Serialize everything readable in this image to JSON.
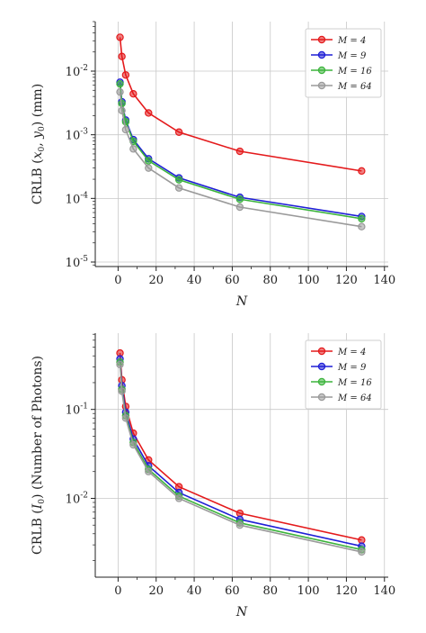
{
  "chart_data": [
    {
      "type": "line",
      "yscale": "log",
      "xlabel": "N",
      "ylabel": "CRLB (x0, y0) (mm)",
      "xlim": [
        -12,
        142
      ],
      "ylim": [
        8.5e-06,
        0.06
      ],
      "xticks": [
        "0",
        "20",
        "40",
        "60",
        "80",
        "100",
        "120",
        "140"
      ],
      "yticks": [
        "10^-2",
        "10^-3",
        "10^-4"
      ],
      "grid": true,
      "legend_position": "top-right",
      "x": [
        1,
        2,
        4,
        8,
        16,
        32,
        64,
        128
      ],
      "series": [
        {
          "name": "M = 4",
          "color": "#e41a1c",
          "values": [
            0.034,
            0.017,
            0.0087,
            0.0044,
            0.0022,
            0.0011,
            0.00055,
            0.00027
          ]
        },
        {
          "name": "M = 9",
          "color": "#1f1fd6",
          "values": [
            0.0067,
            0.0033,
            0.0017,
            0.00084,
            0.00042,
            0.00021,
            0.000104,
            5.2e-05
          ]
        },
        {
          "name": "M = 16",
          "color": "#3cb43c",
          "values": [
            0.0063,
            0.0031,
            0.0016,
            0.00079,
            0.00039,
            0.000196,
            9.7e-05,
            4.8e-05
          ]
        },
        {
          "name": "M = 64",
          "color": "#9a9a9a",
          "values": [
            0.0047,
            0.0024,
            0.0012,
            0.0006,
            0.0003,
            0.000146,
            7.3e-05,
            3.6e-05
          ]
        }
      ]
    },
    {
      "type": "line",
      "yscale": "log",
      "xlabel": "N",
      "ylabel": "CRLB (I0) (Number of Photons)",
      "xlim": [
        -12,
        142
      ],
      "ylim": [
        0.0013,
        0.72
      ],
      "xticks": [
        "0",
        "20",
        "40",
        "60",
        "80",
        "100",
        "120",
        "140"
      ],
      "yticks": [
        "10^-1",
        "10^-2"
      ],
      "grid": true,
      "legend_position": "top-right",
      "x": [
        1,
        2,
        4,
        8,
        16,
        32,
        64,
        128
      ],
      "series": [
        {
          "name": "M = 4",
          "color": "#e41a1c",
          "values": [
            0.43,
            0.215,
            0.108,
            0.054,
            0.027,
            0.0135,
            0.0068,
            0.0034
          ]
        },
        {
          "name": "M = 9",
          "color": "#1f1fd6",
          "values": [
            0.37,
            0.185,
            0.093,
            0.0465,
            0.0232,
            0.0116,
            0.0058,
            0.0029
          ]
        },
        {
          "name": "M = 16",
          "color": "#3cb43c",
          "values": [
            0.34,
            0.168,
            0.085,
            0.0425,
            0.0212,
            0.0106,
            0.0053,
            0.00265
          ]
        },
        {
          "name": "M = 64",
          "color": "#9a9a9a",
          "values": [
            0.32,
            0.16,
            0.08,
            0.04,
            0.02,
            0.01,
            0.005,
            0.0025
          ]
        }
      ]
    }
  ]
}
